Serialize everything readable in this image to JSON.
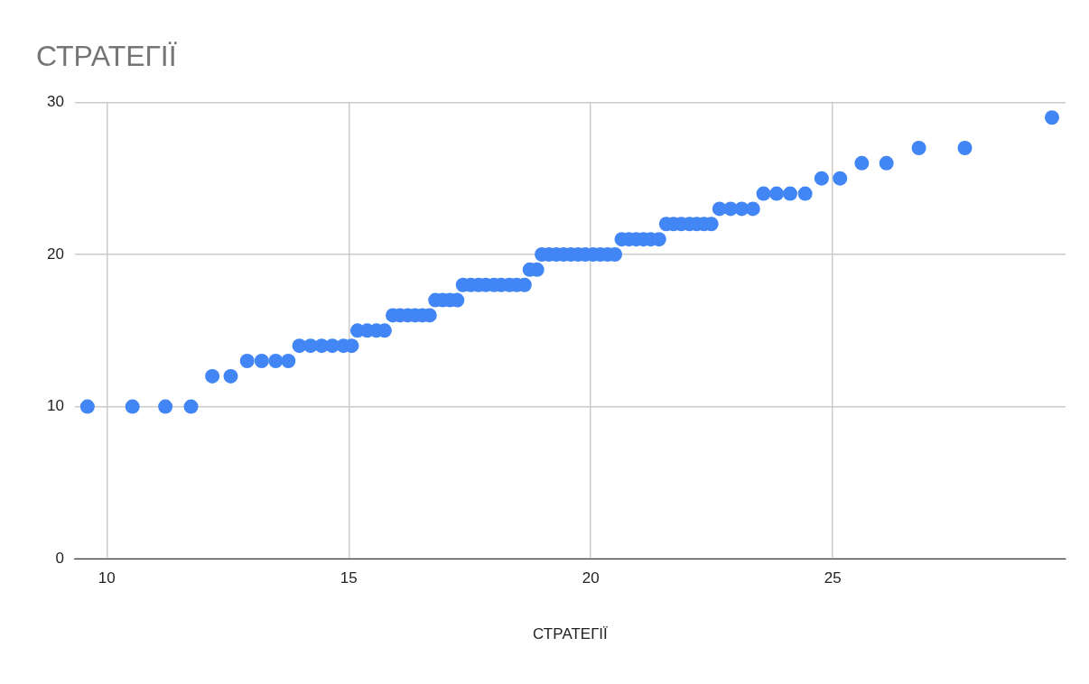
{
  "chart_data": {
    "type": "scatter",
    "title": "СТРАТЕГІЇ",
    "xlabel": "СТРАТЕГІЇ",
    "x": [
      9.6,
      10.53,
      11.21,
      11.74,
      12.18,
      12.56,
      12.9,
      13.2,
      13.49,
      13.75,
      13.98,
      14.21,
      14.44,
      14.66,
      14.89,
      15.06,
      15.18,
      15.38,
      15.57,
      15.74,
      15.91,
      16.06,
      16.22,
      16.37,
      16.52,
      16.67,
      16.79,
      16.94,
      17.09,
      17.24,
      17.36,
      17.52,
      17.68,
      17.83,
      18.0,
      18.15,
      18.32,
      18.47,
      18.63,
      18.74,
      18.89,
      18.99,
      19.14,
      19.29,
      19.44,
      19.59,
      19.74,
      19.89,
      20.05,
      20.2,
      20.35,
      20.5,
      20.64,
      20.79,
      20.94,
      21.09,
      21.24,
      21.41,
      21.56,
      21.71,
      21.87,
      22.04,
      22.19,
      22.34,
      22.49,
      22.66,
      22.89,
      23.12,
      23.35,
      23.57,
      23.84,
      24.12,
      24.43,
      24.77,
      25.15,
      25.6,
      26.11,
      26.78,
      27.73,
      29.53
    ],
    "values": [
      10,
      10,
      10,
      10,
      12,
      12,
      13,
      13,
      13,
      13,
      14,
      14,
      14,
      14,
      14,
      14,
      15,
      15,
      15,
      15,
      16,
      16,
      16,
      16,
      16,
      16,
      17,
      17,
      17,
      17,
      18,
      18,
      18,
      18,
      18,
      18,
      18,
      18,
      18,
      19,
      19,
      20,
      20,
      20,
      20,
      20,
      20,
      20,
      20,
      20,
      20,
      20,
      21,
      21,
      21,
      21,
      21,
      21,
      22,
      22,
      22,
      22,
      22,
      22,
      22,
      23,
      23,
      23,
      23,
      24,
      24,
      24,
      24,
      25,
      25,
      26,
      26,
      27,
      27,
      29
    ],
    "color": "#4285f4",
    "marker": "circle",
    "xlim": [
      9.34,
      29.81
    ],
    "xticks": [
      10,
      15,
      20,
      25
    ],
    "ylim": [
      0,
      30
    ],
    "yticks": [
      0,
      10,
      20,
      30
    ],
    "grid": true,
    "legend": false
  }
}
